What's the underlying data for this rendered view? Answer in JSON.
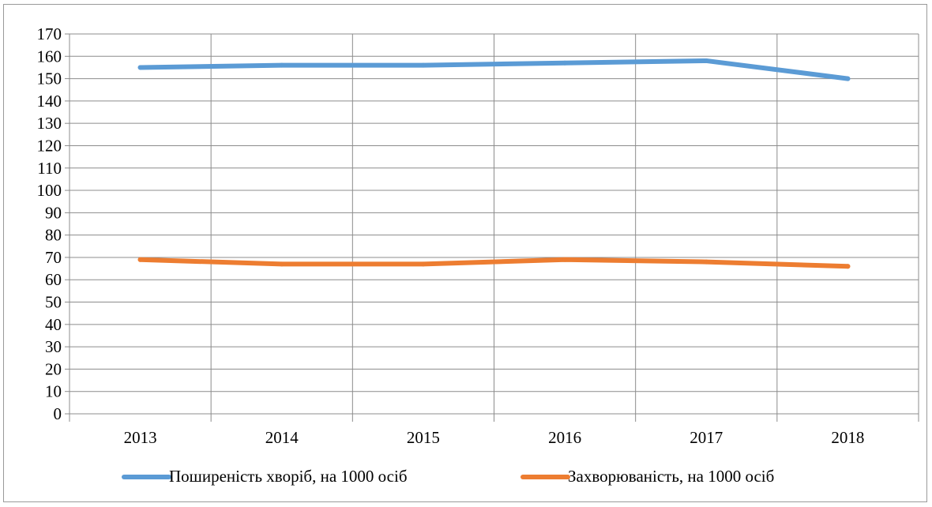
{
  "chart_data": {
    "type": "line",
    "title": "",
    "xlabel": "",
    "ylabel": "",
    "categories": [
      "2013",
      "2014",
      "2015",
      "2016",
      "2017",
      "2018"
    ],
    "ylim": [
      0,
      170
    ],
    "ytick_step": 10,
    "grid": true,
    "legend_position": "bottom",
    "series": [
      {
        "name": "Поширеність хворіб, на 1000 осіб",
        "color": "#5b9bd5",
        "values": [
          155,
          156,
          156,
          157,
          158,
          150
        ]
      },
      {
        "name": "Захворюваність, на 1000 осіб",
        "color": "#ed7d31",
        "values": [
          69,
          67,
          67,
          69,
          68,
          66
        ]
      }
    ]
  }
}
